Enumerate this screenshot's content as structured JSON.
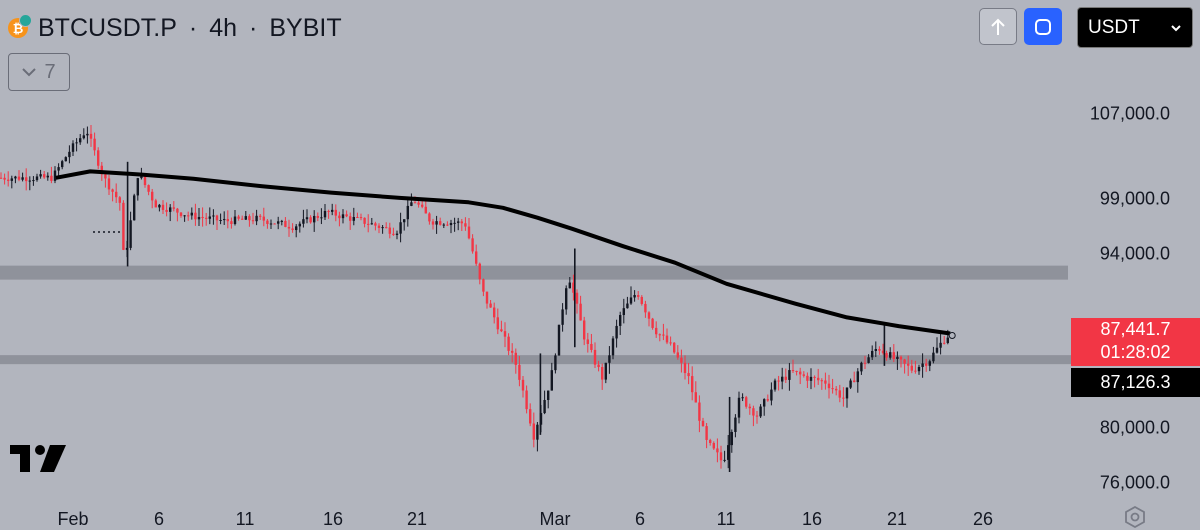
{
  "header": {
    "coin_glyph": "₿",
    "symbol": "BTCUSDT.P",
    "interval": "4h",
    "exchange": "BYBIT"
  },
  "indicators_collapse": {
    "count": "7"
  },
  "toolbar": {
    "currency": "USDT"
  },
  "price_scale": {
    "ticks": [
      "107,000.0",
      "99,000.0",
      "94,000.0",
      "80,000.0",
      "76,000.0"
    ],
    "last_price": "87,441.7",
    "countdown": "01:28:02",
    "marker_price": "87,126.3"
  },
  "chart_data": {
    "type": "candlestick",
    "symbol": "BTCUSDT.P",
    "interval": "4h",
    "x_ticks": [
      "Feb",
      "6",
      "11",
      "16",
      "21",
      "Mar",
      "6",
      "11",
      "16",
      "21",
      "26"
    ],
    "y_ticks": [
      107000,
      99000,
      94000,
      80000,
      76000
    ],
    "ylim": [
      74000,
      110000
    ],
    "horizontal_levels": [
      92500,
      85500
    ],
    "moving_average_path": [
      [
        "Jan 31",
        101000
      ],
      [
        "Feb 2",
        101600
      ],
      [
        "Feb 5",
        101300
      ],
      [
        "Feb 8",
        100900
      ],
      [
        "Feb 12",
        100200
      ],
      [
        "Feb 16",
        99600
      ],
      [
        "Feb 20",
        99100
      ],
      [
        "Feb 24",
        98700
      ],
      [
        "Feb 26",
        98200
      ],
      [
        "Feb 28",
        97300
      ],
      [
        "Mar 2",
        96300
      ],
      [
        "Mar 5",
        94700
      ],
      [
        "Mar 8",
        93300
      ],
      [
        "Mar 11",
        91600
      ],
      [
        "Mar 15",
        90000
      ],
      [
        "Mar 18",
        88900
      ],
      [
        "Mar 21",
        88200
      ],
      [
        "Mar 24",
        87600
      ]
    ],
    "price_path": [
      [
        "Jan 31",
        101000
      ],
      [
        "Feb 1",
        103500
      ],
      [
        "Feb 2",
        105500
      ],
      [
        "Feb 3",
        101000
      ],
      [
        "Feb 4",
        98500
      ],
      [
        "Feb 4 min",
        93000
      ],
      [
        "Feb 5",
        101500
      ],
      [
        "Feb 6",
        98500
      ],
      [
        "Feb 8",
        97500
      ],
      [
        "Feb 10",
        97000
      ],
      [
        "Feb 12",
        97200
      ],
      [
        "Feb 14",
        96500
      ],
      [
        "Feb 16",
        97800
      ],
      [
        "Feb 18",
        97000
      ],
      [
        "Feb 20",
        96000
      ],
      [
        "Feb 21",
        99000
      ],
      [
        "Feb 22",
        97000
      ],
      [
        "Feb 24",
        96800
      ],
      [
        "Feb 25",
        91000
      ],
      [
        "Feb 26",
        88000
      ],
      [
        "Feb 27",
        85000
      ],
      [
        "Feb 28",
        79500
      ],
      [
        "Mar 1",
        84000
      ],
      [
        "Mar 2",
        92500
      ],
      [
        "Mar 3",
        87000
      ],
      [
        "Mar 4",
        84000
      ],
      [
        "Mar 5",
        89000
      ],
      [
        "Mar 6",
        91000
      ],
      [
        "Mar 7",
        88000
      ],
      [
        "Mar 8",
        86500
      ],
      [
        "Mar 9",
        84000
      ],
      [
        "Mar 10",
        79000
      ],
      [
        "Mar 11",
        77500
      ],
      [
        "Mar 12",
        82500
      ],
      [
        "Mar 13",
        81000
      ],
      [
        "Mar 14",
        83500
      ],
      [
        "Mar 15",
        84500
      ],
      [
        "Mar 16",
        84000
      ],
      [
        "Mar 17",
        83700
      ],
      [
        "Mar 18",
        82400
      ],
      [
        "Mar 19",
        85000
      ],
      [
        "Mar 20",
        86500
      ],
      [
        "Mar 21",
        85500
      ],
      [
        "Mar 22",
        84700
      ],
      [
        "Mar 23",
        85500
      ],
      [
        "Mar 24",
        87441.7
      ]
    ],
    "last_price": 87441.7,
    "marker_price": 87126.3
  }
}
